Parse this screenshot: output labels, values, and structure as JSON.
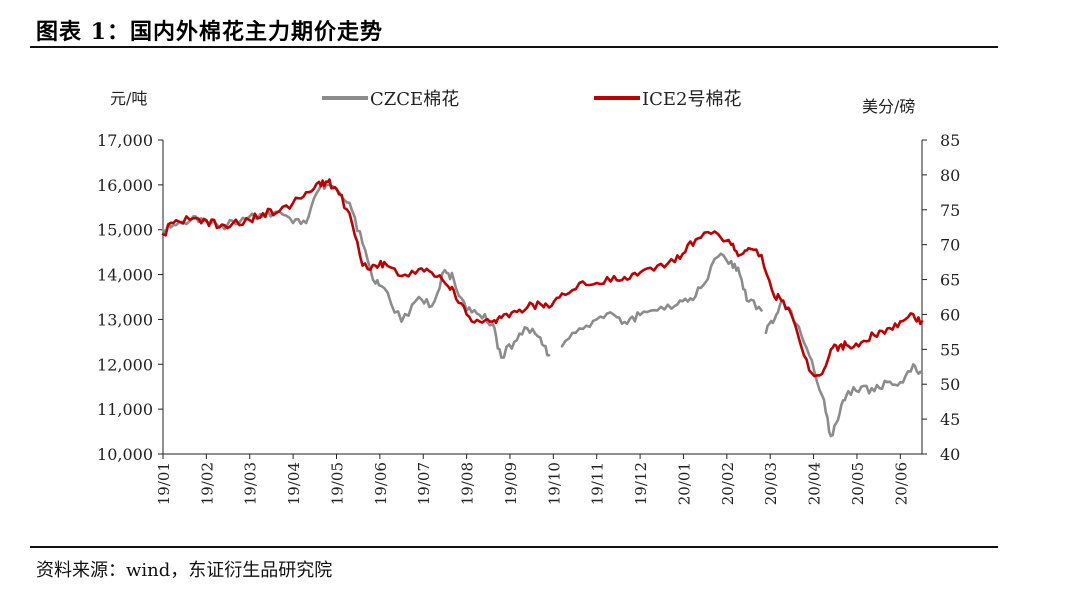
{
  "title": "图表 1：国内外棉花主力期价走势",
  "source": "资料来源：wind，东证衍生品研究院",
  "chart_data": {
    "type": "line",
    "title": "国内外棉花主力期价走势",
    "y_left_label": "元/吨",
    "y_right_label": "美分/磅",
    "y_left_range": [
      10000,
      17000
    ],
    "y_right_range": [
      40,
      85
    ],
    "y_left_ticks": [
      "17,000",
      "16,000",
      "15,000",
      "14,000",
      "13,000",
      "12,000",
      "11,000",
      "10,000"
    ],
    "y_right_ticks": [
      "85",
      "80",
      "75",
      "70",
      "65",
      "60",
      "55",
      "50",
      "45",
      "40"
    ],
    "x_ticks": [
      "19/01",
      "19/02",
      "19/03",
      "19/04",
      "19/05",
      "19/06",
      "19/07",
      "19/08",
      "19/09",
      "19/10",
      "19/11",
      "19/12",
      "20/01",
      "20/02",
      "20/03",
      "20/04",
      "20/05",
      "20/06"
    ],
    "x_range_months": [
      0,
      17.5
    ],
    "series": [
      {
        "name": "CZCE棉花",
        "axis": "left",
        "color": "#8c8c8c",
        "t": [
          0.0,
          0.3,
          0.7,
          1.0,
          1.3,
          1.6,
          2.0,
          2.3,
          2.6,
          3.0,
          3.3,
          3.6,
          3.8,
          4.0,
          4.3,
          4.6,
          4.9,
          5.1,
          5.5,
          5.9,
          6.2,
          6.5,
          6.7,
          7.0,
          7.3,
          7.6,
          7.8,
          8.1,
          8.4,
          8.7,
          8.9
        ],
        "values": [
          15000,
          15100,
          15300,
          15200,
          15050,
          15200,
          15300,
          15300,
          15400,
          15150,
          15150,
          15900,
          16000,
          15900,
          15600,
          14700,
          13800,
          13700,
          12950,
          13500,
          13300,
          14100,
          13900,
          13200,
          13100,
          12900,
          12150,
          12500,
          12800,
          12600,
          12200
        ],
        "gaps": [
          {
            "t": [
              9.2,
              9.6,
              10.0,
              10.4,
              10.7,
              11.0,
              11.4,
              11.8,
              12.1,
              12.4,
              12.8,
              13.1,
              13.3,
              13.5,
              13.8
            ],
            "values": [
              12400,
              12800,
              13000,
              13100,
              12900,
              13100,
              13200,
              13300,
              13400,
              13700,
              14400,
              14300,
              14000,
              13400,
              13200
            ]
          },
          {
            "t": [
              13.9,
              14.1,
              14.3,
              14.6,
              14.9,
              15.2,
              15.4,
              15.6,
              15.8,
              16.1,
              16.4,
              16.7,
              17.0,
              17.3,
              17.5
            ],
            "values": [
              12700,
              13000,
              13400,
              12900,
              12200,
              11300,
              10400,
              10900,
              11400,
              11500,
              11400,
              11600,
              11600,
              12000,
              11800
            ]
          }
        ]
      },
      {
        "name": "ICE2号棉花",
        "axis": "right",
        "color": "#c00000",
        "t": [
          0.0,
          0.3,
          0.7,
          1.0,
          1.3,
          1.6,
          2.0,
          2.3,
          2.6,
          3.0,
          3.3,
          3.6,
          3.8,
          4.0,
          4.3,
          4.6,
          4.9,
          5.1,
          5.5,
          5.9,
          6.2,
          6.5,
          6.7,
          7.0,
          7.3,
          7.6,
          7.8,
          8.1,
          8.4,
          8.7,
          8.9,
          9.2,
          9.6,
          10.0,
          10.4,
          10.7,
          11.0,
          11.4,
          11.8,
          12.1,
          12.4,
          12.8,
          13.1,
          13.3,
          13.5,
          13.8,
          14.1,
          14.3,
          14.6,
          14.9,
          15.2,
          15.4,
          15.6,
          15.8,
          16.1,
          16.4,
          16.7,
          17.0,
          17.3,
          17.5
        ],
        "values": [
          71.5,
          73.5,
          73.8,
          73.5,
          72.5,
          73.0,
          73.5,
          74.5,
          74.5,
          76.0,
          77.5,
          79.0,
          79.0,
          78.0,
          74.5,
          67.0,
          67.0,
          67.5,
          65.5,
          66.5,
          66.0,
          64.5,
          63.5,
          60.0,
          59.0,
          59.0,
          59.5,
          60.5,
          61.0,
          61.5,
          61.0,
          63.0,
          64.5,
          64.5,
          65.5,
          65.0,
          66.0,
          67.0,
          67.5,
          70.0,
          71.0,
          71.5,
          70.0,
          68.5,
          69.5,
          68.5,
          62.5,
          62.0,
          58.0,
          52.0,
          51.5,
          55.0,
          55.5,
          55.5,
          56.0,
          57.0,
          58.0,
          59.0,
          60.0,
          59.0
        ]
      }
    ]
  }
}
